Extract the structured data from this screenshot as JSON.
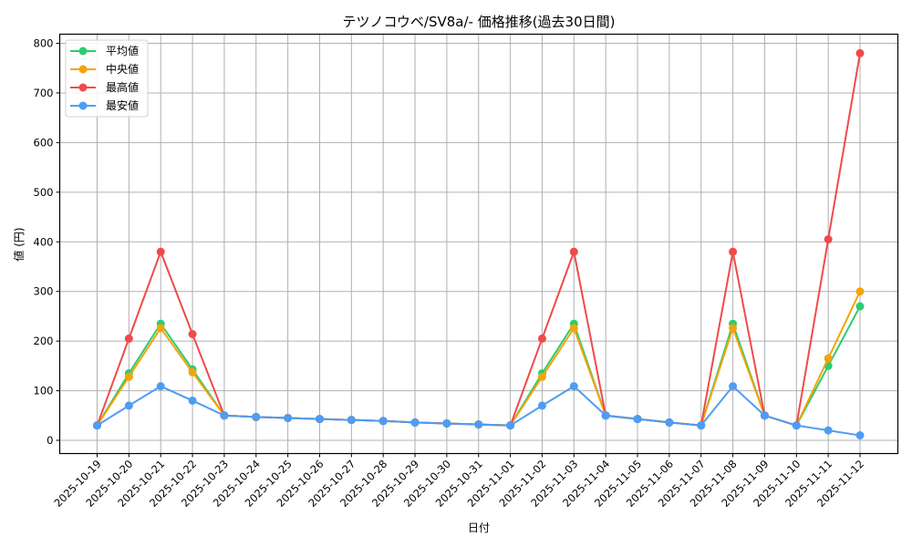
{
  "chart_data": {
    "type": "line",
    "title": "テツノコウベ/SV8a/- 価格推移(過去30日間)",
    "xlabel": "日付",
    "ylabel": "値 (円)",
    "ylim": [
      -25,
      820
    ],
    "yticks": [
      0,
      100,
      200,
      300,
      400,
      500,
      600,
      700,
      800
    ],
    "grid": true,
    "legend_position": "upper left",
    "categories": [
      "2025-10-19",
      "2025-10-20",
      "2025-10-21",
      "2025-10-22",
      "2025-10-23",
      "2025-10-24",
      "2025-10-25",
      "2025-10-26",
      "2025-10-27",
      "2025-10-28",
      "2025-10-29",
      "2025-10-30",
      "2025-10-31",
      "2025-11-01",
      "2025-11-02",
      "2025-11-03",
      "2025-11-04",
      "2025-11-05",
      "2025-11-06",
      "2025-11-07",
      "2025-11-08",
      "2025-11-09",
      "2025-11-10",
      "2025-11-11",
      "2025-11-12"
    ],
    "series": [
      {
        "name": "平均値",
        "color": "#2ecc71",
        "values": [
          30,
          135,
          235,
          143,
          50,
          47,
          45,
          43,
          41,
          39,
          36,
          34,
          32,
          30,
          135,
          235,
          50,
          43,
          36,
          30,
          235,
          50,
          30,
          150,
          270
        ]
      },
      {
        "name": "中央値",
        "color": "#f5a30a",
        "values": [
          30,
          128,
          226,
          137,
          50,
          47,
          45,
          43,
          41,
          39,
          36,
          34,
          32,
          30,
          128,
          226,
          50,
          43,
          36,
          30,
          226,
          50,
          30,
          165,
          300
        ]
      },
      {
        "name": "最高値",
        "color": "#f04a4a",
        "values": [
          30,
          205,
          380,
          214,
          50,
          47,
          45,
          43,
          41,
          39,
          36,
          34,
          32,
          30,
          205,
          380,
          50,
          43,
          36,
          30,
          380,
          50,
          30,
          405,
          780
        ]
      },
      {
        "name": "最安値",
        "color": "#4f9cf5",
        "values": [
          30,
          70,
          109,
          80,
          50,
          47,
          45,
          43,
          41,
          39,
          36,
          34,
          32,
          30,
          70,
          109,
          50,
          43,
          36,
          30,
          109,
          50,
          30,
          20,
          10
        ]
      }
    ]
  }
}
